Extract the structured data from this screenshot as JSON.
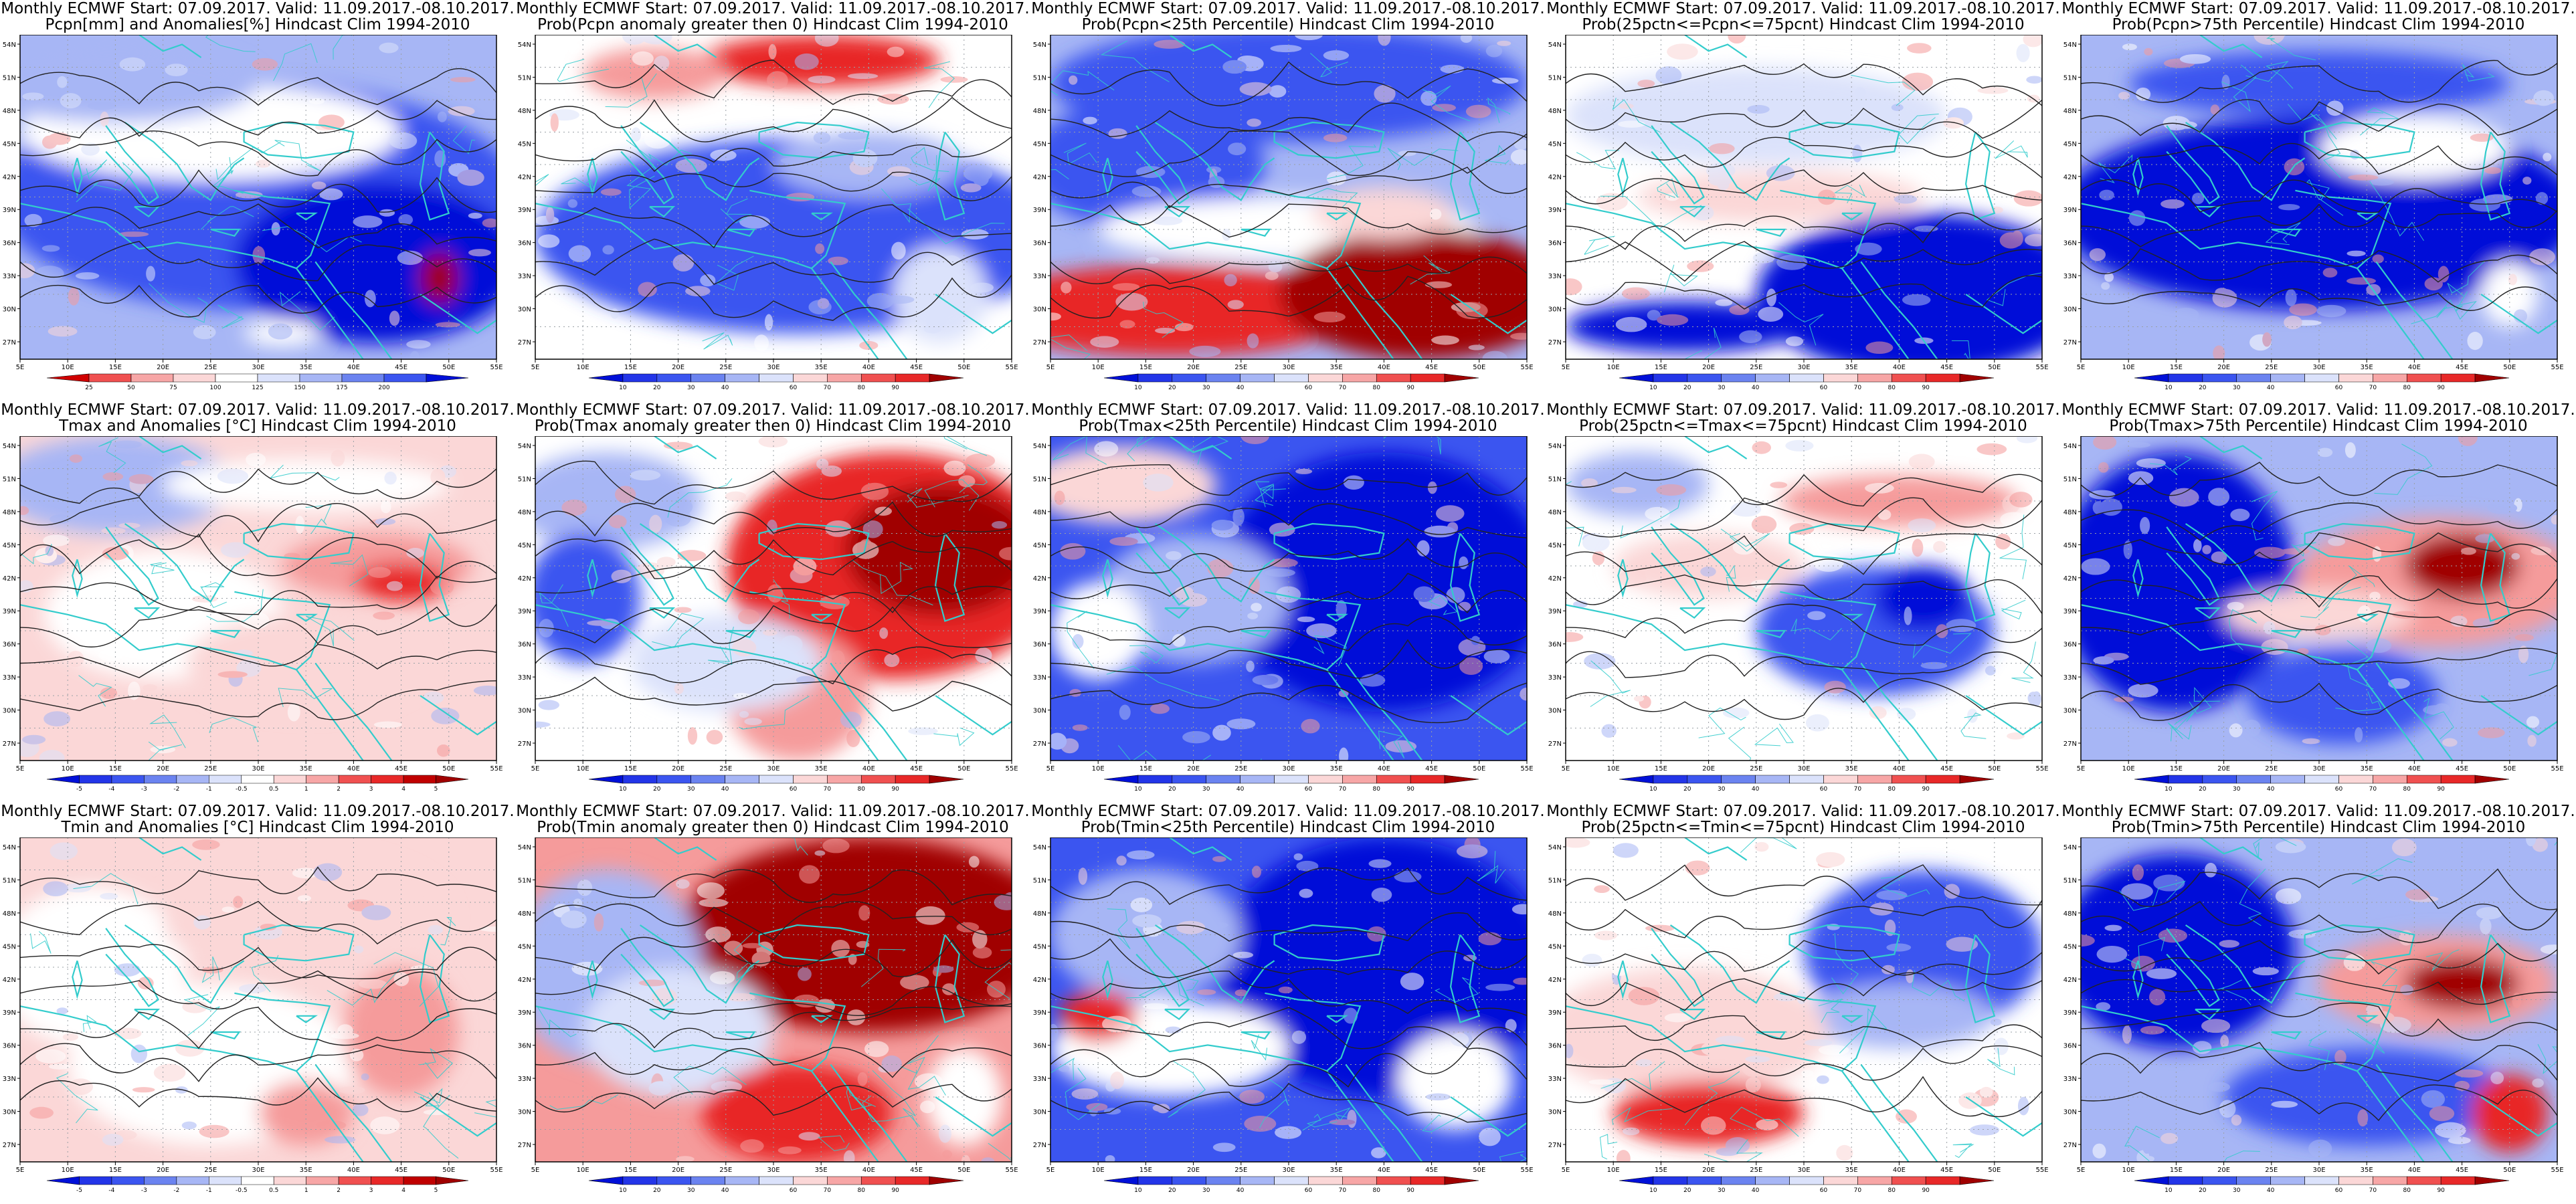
{
  "colors": {
    "deep_blue": "#0010d8",
    "blue": "#3b55f0",
    "light_blue": "#a7b6f5",
    "pale_blue": "#dbe2fb",
    "white": "#ffffff",
    "pale_red": "#fbd7d7",
    "light_red": "#f59b9b",
    "red": "#e82828",
    "dark_red": "#a00000",
    "coast": "#33cccc",
    "contour": "#222222"
  },
  "axes": {
    "lon_ticks": [
      "5E",
      "10E",
      "15E",
      "20E",
      "25E",
      "30E",
      "35E",
      "40E",
      "45E",
      "50E",
      "55E"
    ],
    "lat_ticks": [
      "54N",
      "51N",
      "48N",
      "45N",
      "42N",
      "39N",
      "36N",
      "33N",
      "30N",
      "27N"
    ]
  },
  "scales": {
    "pcpn": [
      "25",
      "50",
      "75",
      "100",
      "125",
      "150",
      "175",
      "200"
    ],
    "prob": [
      "10",
      "20",
      "30",
      "40",
      "60",
      "70",
      "80",
      "90"
    ],
    "temp": [
      "-5",
      "-4",
      "-3",
      "-2",
      "-1",
      "-0.5",
      "0.5",
      "1",
      "2",
      "3",
      "4",
      "5"
    ]
  },
  "panels": [
    {
      "title1": "Monthly ECMWF Start: 07.09.2017. Valid: 11.09.2017.-08.10.2017.",
      "title2": "Pcpn[mm] and Anomalies[%] Hindcast Clim 1994-2010",
      "pattern": "pcpn",
      "scale": "pcpn"
    },
    {
      "title1": "Monthly ECMWF Start: 07.09.2017. Valid: 11.09.2017.-08.10.2017.",
      "title2": "Prob(Pcpn anomaly greater then 0) Hindcast Clim 1994-2010",
      "pattern": "pcpn_gt0",
      "scale": "prob"
    },
    {
      "title1": "Monthly ECMWF Start: 07.09.2017. Valid: 11.09.2017.-08.10.2017.",
      "title2": "Prob(Pcpn<25th Percentile) Hindcast Clim 1994-2010",
      "pattern": "pcpn_lt25",
      "scale": "prob"
    },
    {
      "title1": "Monthly ECMWF Start: 07.09.2017. Valid: 11.09.2017.-08.10.2017.",
      "title2": "Prob(25pctn<=Pcpn<=75pcnt) Hindcast Clim 1994-2010",
      "pattern": "pcpn_mid",
      "scale": "prob"
    },
    {
      "title1": "Monthly ECMWF Start: 07.09.2017. Valid: 11.09.2017.-08.10.2017.",
      "title2": "Prob(Pcpn>75th Percentile) Hindcast Clim 1994-2010",
      "pattern": "pcpn_gt75",
      "scale": "prob"
    },
    {
      "title1": "Monthly ECMWF Start: 07.09.2017. Valid: 11.09.2017.-08.10.2017.",
      "title2": "Tmax and Anomalies [°C] Hindcast Clim 1994-2010",
      "pattern": "tmax",
      "scale": "temp"
    },
    {
      "title1": "Monthly ECMWF Start: 07.09.2017. Valid: 11.09.2017.-08.10.2017.",
      "title2": "Prob(Tmax anomaly greater then 0) Hindcast Clim 1994-2010",
      "pattern": "tmax_gt0",
      "scale": "prob"
    },
    {
      "title1": "Monthly ECMWF Start: 07.09.2017. Valid: 11.09.2017.-08.10.2017.",
      "title2": "Prob(Tmax<25th Percentile) Hindcast Clim 1994-2010",
      "pattern": "tmax_lt25",
      "scale": "prob"
    },
    {
      "title1": "Monthly ECMWF Start: 07.09.2017. Valid: 11.09.2017.-08.10.2017.",
      "title2": "Prob(25pctn<=Tmax<=75pcnt) Hindcast Clim 1994-2010",
      "pattern": "tmax_mid",
      "scale": "prob"
    },
    {
      "title1": "Monthly ECMWF Start: 07.09.2017. Valid: 11.09.2017.-08.10.2017.",
      "title2": "Prob(Tmax>75th Percentile) Hindcast Clim 1994-2010",
      "pattern": "tmax_gt75",
      "scale": "prob"
    },
    {
      "title1": "Monthly ECMWF Start: 07.09.2017. Valid: 11.09.2017.-08.10.2017.",
      "title2": "Tmin and Anomalies [°C] Hindcast Clim 1994-2010",
      "pattern": "tmin",
      "scale": "temp"
    },
    {
      "title1": "Monthly ECMWF Start: 07.09.2017. Valid: 11.09.2017.-08.10.2017.",
      "title2": "Prob(Tmin anomaly greater then 0) Hindcast Clim 1994-2010",
      "pattern": "tmin_gt0",
      "scale": "prob"
    },
    {
      "title1": "Monthly ECMWF Start: 07.09.2017. Valid: 11.09.2017.-08.10.2017.",
      "title2": "Prob(Tmin<25th Percentile) Hindcast Clim 1994-2010",
      "pattern": "tmin_lt25",
      "scale": "prob"
    },
    {
      "title1": "Monthly ECMWF Start: 07.09.2017. Valid: 11.09.2017.-08.10.2017.",
      "title2": "Prob(25pctn<=Tmin<=75pcnt) Hindcast Clim 1994-2010",
      "pattern": "tmin_mid",
      "scale": "prob"
    },
    {
      "title1": "Monthly ECMWF Start: 07.09.2017. Valid: 11.09.2017.-08.10.2017.",
      "title2": "Prob(Tmin>75th Percentile) Hindcast Clim 1994-2010",
      "pattern": "tmin_gt75",
      "scale": "prob"
    }
  ]
}
